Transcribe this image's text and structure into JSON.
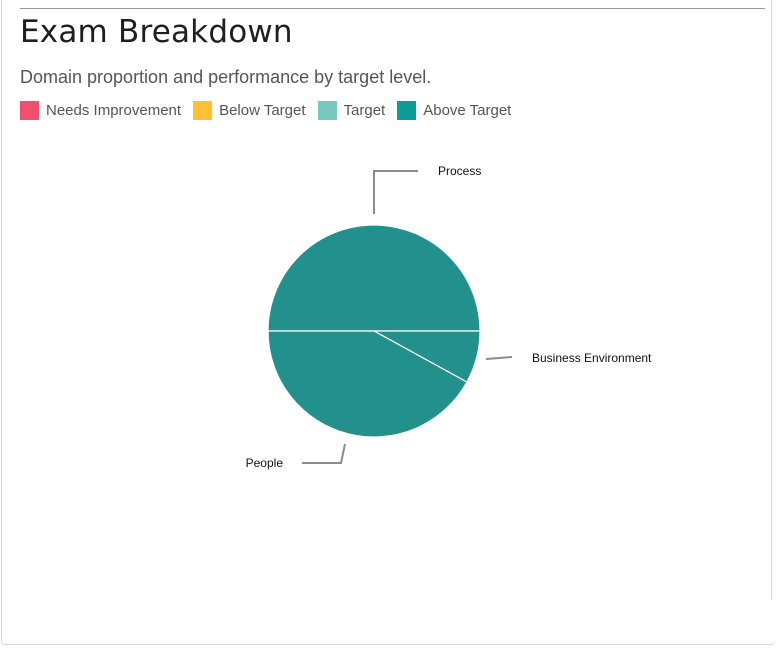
{
  "header": {
    "title": "Exam Breakdown",
    "subtitle": "Domain proportion and performance by target level."
  },
  "legend": {
    "items": [
      {
        "label": "Needs Improvement",
        "color": "#f0506e"
      },
      {
        "label": "Below Target",
        "color": "#fdc133"
      },
      {
        "label": "Target",
        "color": "#78c9bd"
      },
      {
        "label": "Above Target",
        "color": "#0e9d96"
      }
    ]
  },
  "chart_data": {
    "type": "pie",
    "title": "",
    "slice_color": "#22908c",
    "categories": [
      "Process",
      "Business  Environment",
      "People"
    ],
    "values": [
      50,
      8,
      42
    ],
    "units": "percent"
  }
}
